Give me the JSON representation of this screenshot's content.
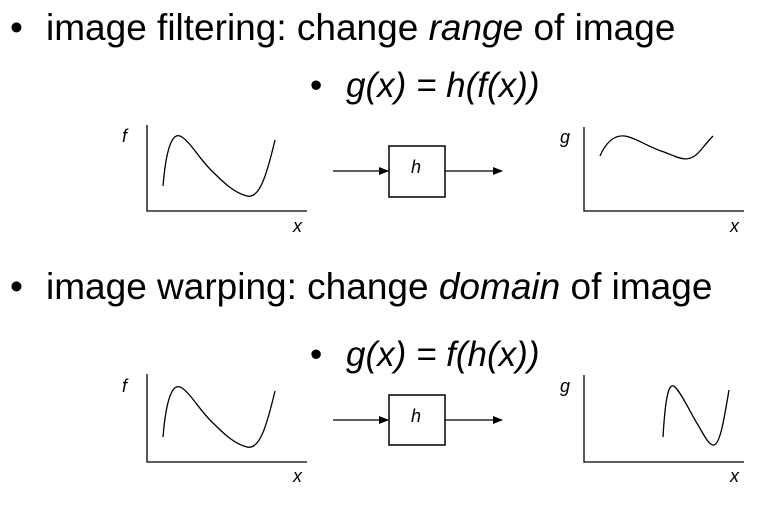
{
  "section1": {
    "bullet": "•",
    "text_before": "image filtering: change ",
    "emphasis": "range",
    "text_after": " of image",
    "sub_bullet": "•",
    "formula": "g(x) = h(f(x))",
    "diagram": {
      "input_axis_y_label": "f",
      "input_axis_x_label": "x",
      "box_label": "h",
      "output_axis_y_label": "g",
      "output_axis_x_label": "x"
    }
  },
  "section2": {
    "bullet": "•",
    "text_before": "image warping: change ",
    "emphasis": "domain",
    "text_after": " of image",
    "sub_bullet": "•",
    "formula": "g(x) = f(h(x))",
    "diagram": {
      "input_axis_y_label": "f",
      "input_axis_x_label": "x",
      "box_label": "h",
      "output_axis_y_label": "g",
      "output_axis_x_label": "x"
    }
  },
  "colors": {
    "text": "#000000",
    "background": "#ffffff"
  }
}
